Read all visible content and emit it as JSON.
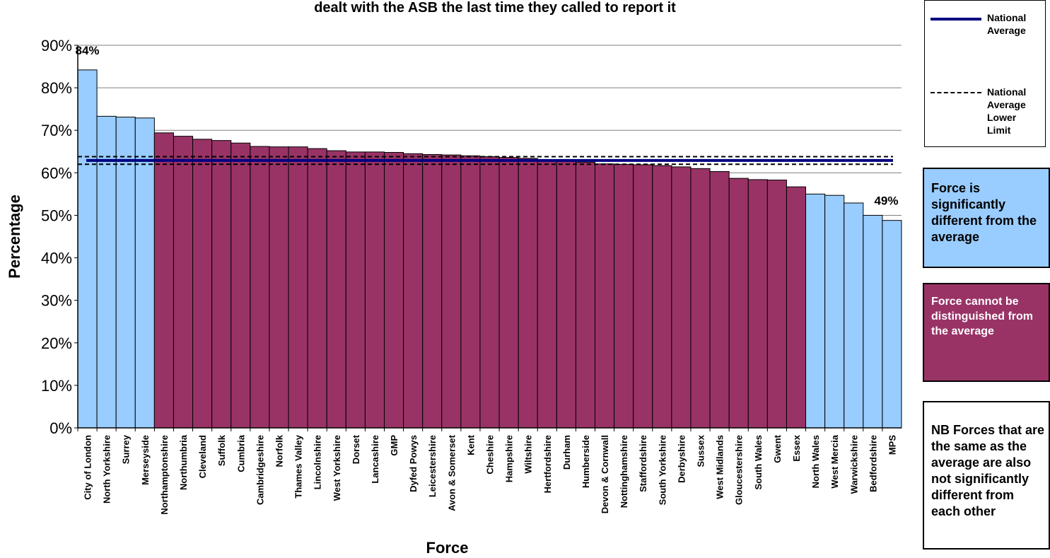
{
  "title": "dealt with the ASB the last time they called to report it",
  "legend": {
    "national_average": "National Average",
    "national_average_lower_limit": "National Average Lower Limit"
  },
  "notes": {
    "significant": "Force is significantly different from the average",
    "not_distinguished": "Force cannot be distinguished from the average",
    "nb": "NB Forces that are the same as the average are also not significantly different from each other"
  },
  "colors": {
    "significant": "#99ccff",
    "not_significant": "#993366",
    "national_average": "#000080",
    "lower_limit": "#000000"
  },
  "chart_data": {
    "type": "bar",
    "title": "dealt with the ASB the last time they called to report it",
    "xlabel": "Force",
    "ylabel": "Percentage",
    "ylim": [
      0,
      90
    ],
    "yticks": [
      "0%",
      "10%",
      "20%",
      "30%",
      "40%",
      "50%",
      "60%",
      "70%",
      "80%",
      "90%"
    ],
    "grid": true,
    "categories": [
      "City of London",
      "North Yorkshire",
      "Surrey",
      "Merseyside",
      "Northamptonshire",
      "Northumbria",
      "Cleveland",
      "Suffolk",
      "Cumbria",
      "Cambridgeshire",
      "Norfolk",
      "Thames Valley",
      "Lincolnshire",
      "West Yorkshire",
      "Dorset",
      "Lancashire",
      "GMP",
      "Dyfed Powys",
      "Leicestershire",
      "Avon & Somerset",
      "Kent",
      "Cheshire",
      "Hampshire",
      "Wiltshire",
      "Hertfordshire",
      "Durham",
      "Humberside",
      "Devon & Cornwall",
      "Nottinghamshire",
      "Staffordshire",
      "South Yorkshire",
      "Derbyshire",
      "Sussex",
      "West Midlands",
      "Gloucestershire",
      "South Wales",
      "Gwent",
      "Essex",
      "North Wales",
      "West Mercia",
      "Warwickshire",
      "Bedfordshire",
      "MPS"
    ],
    "values": [
      84.2,
      73.3,
      73.1,
      72.9,
      69.4,
      68.6,
      67.9,
      67.6,
      67.0,
      66.2,
      66.1,
      66.1,
      65.7,
      65.2,
      64.9,
      64.9,
      64.8,
      64.5,
      64.3,
      64.2,
      64.0,
      63.8,
      63.6,
      63.4,
      63.1,
      62.7,
      62.5,
      62.1,
      62.0,
      61.9,
      61.7,
      61.4,
      61.0,
      60.3,
      58.7,
      58.4,
      58.3,
      56.7,
      55.0,
      54.7,
      52.9,
      50.0,
      48.8
    ],
    "significance": [
      "sig",
      "sig",
      "sig",
      "sig",
      "ns",
      "ns",
      "ns",
      "ns",
      "ns",
      "ns",
      "ns",
      "ns",
      "ns",
      "ns",
      "ns",
      "ns",
      "ns",
      "ns",
      "ns",
      "ns",
      "ns",
      "ns",
      "ns",
      "ns",
      "ns",
      "ns",
      "ns",
      "ns",
      "ns",
      "ns",
      "ns",
      "ns",
      "ns",
      "ns",
      "ns",
      "ns",
      "ns",
      "ns",
      "sig",
      "sig",
      "sig",
      "sig",
      "sig"
    ],
    "national_average": 62.9,
    "national_average_upper_limit": 63.8,
    "national_average_lower_limit": 62.0,
    "data_labels": [
      {
        "category": "City of London",
        "text": "84%"
      },
      {
        "category": "MPS",
        "text": "49%"
      }
    ]
  }
}
